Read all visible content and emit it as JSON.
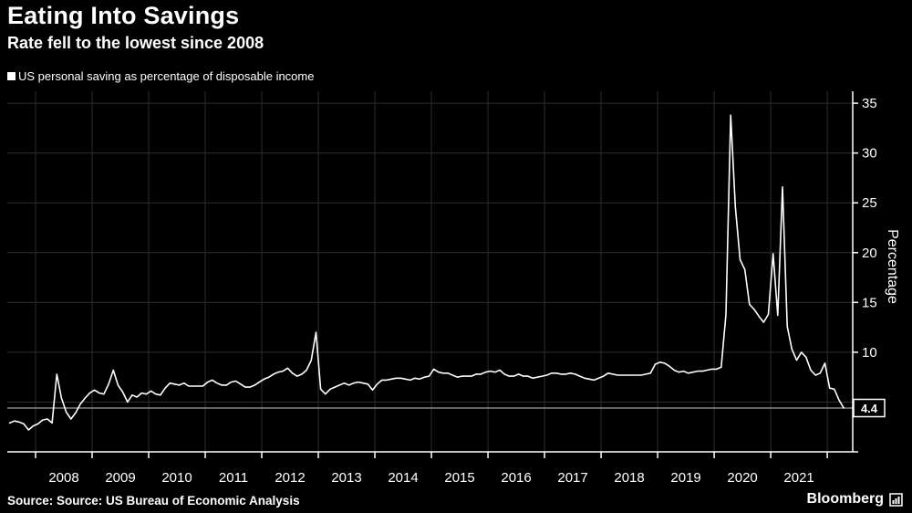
{
  "header": {
    "title": "Eating Into Savings",
    "subtitle": "Rate fell to the lowest since 2008",
    "legend_label": "US personal saving as percentage of disposable income"
  },
  "footer": {
    "source": "Source: Source: US Bureau of Economic Analysis",
    "brand": "Bloomberg"
  },
  "chart_data": {
    "type": "line",
    "title": "Eating Into Savings",
    "subtitle": "Rate fell to the lowest since 2008",
    "ylabel": "Percentage",
    "legend_position": "top-left",
    "grid": true,
    "xlim": [
      2007.5,
      2022.45
    ],
    "ylim": [
      0,
      36.2
    ],
    "yticks": [
      5,
      10,
      15,
      20,
      25,
      30,
      35
    ],
    "ytick_labels": [
      10,
      15,
      20,
      25,
      30,
      35
    ],
    "xgrid_years": [
      2008,
      2009,
      2010,
      2011,
      2012,
      2013,
      2014,
      2015,
      2016,
      2017,
      2018,
      2019,
      2020,
      2021,
      2022
    ],
    "xtick_labels": [
      "2008",
      "2009",
      "2010",
      "2011",
      "2012",
      "2013",
      "2014",
      "2015",
      "2016",
      "2017",
      "2018",
      "2019",
      "2020",
      "2021"
    ],
    "last_value": 4.4,
    "last_value_label": "4.4",
    "colors": {
      "background": "#000000",
      "line": "#ffffff",
      "grid": "#2e2e2e",
      "axis": "#ffffff",
      "marker_line": "#c8c8c8",
      "text": "#ffffff"
    },
    "series": [
      {
        "name": "US personal saving as percentage of disposable income",
        "frequency": "monthly",
        "start_year": 2007,
        "start_month": 7,
        "values": [
          2.9,
          3.1,
          3.0,
          2.8,
          2.2,
          2.6,
          2.8,
          3.2,
          3.3,
          2.9,
          7.8,
          5.4,
          4.0,
          3.3,
          3.9,
          4.8,
          5.4,
          5.9,
          6.2,
          5.9,
          5.8,
          6.8,
          8.2,
          6.7,
          6.0,
          5.0,
          5.7,
          5.5,
          5.9,
          5.8,
          6.1,
          5.8,
          5.7,
          6.4,
          6.9,
          6.8,
          6.7,
          6.9,
          6.6,
          6.6,
          6.6,
          6.6,
          7.0,
          7.2,
          6.9,
          6.7,
          6.7,
          7.0,
          7.1,
          6.8,
          6.5,
          6.5,
          6.7,
          7.0,
          7.3,
          7.5,
          7.8,
          8.0,
          8.1,
          8.4,
          7.9,
          7.6,
          7.8,
          8.2,
          9.2,
          12.0,
          6.3,
          5.8,
          6.3,
          6.5,
          6.7,
          6.9,
          6.7,
          6.9,
          7.0,
          6.9,
          6.8,
          6.2,
          6.8,
          7.2,
          7.2,
          7.3,
          7.4,
          7.4,
          7.3,
          7.2,
          7.4,
          7.3,
          7.5,
          7.6,
          8.3,
          8.0,
          7.9,
          7.9,
          7.7,
          7.5,
          7.6,
          7.6,
          7.6,
          7.8,
          7.8,
          8.0,
          8.1,
          8.0,
          8.2,
          7.8,
          7.6,
          7.6,
          7.8,
          7.6,
          7.6,
          7.4,
          7.5,
          7.6,
          7.7,
          7.9,
          7.9,
          7.8,
          7.8,
          7.9,
          7.8,
          7.6,
          7.4,
          7.3,
          7.2,
          7.4,
          7.6,
          7.9,
          7.8,
          7.7,
          7.7,
          7.7,
          7.7,
          7.7,
          7.7,
          7.8,
          7.9,
          8.8,
          9.0,
          8.9,
          8.6,
          8.2,
          8.0,
          8.1,
          7.9,
          8.0,
          8.1,
          8.1,
          8.2,
          8.3,
          8.3,
          8.5,
          13.8,
          33.8,
          24.6,
          19.3,
          18.3,
          14.8,
          14.3,
          13.6,
          13.0,
          13.8,
          19.9,
          13.7,
          26.6,
          12.6,
          10.3,
          9.2,
          10.0,
          9.5,
          8.2,
          7.7,
          7.9,
          8.9,
          6.4,
          6.3,
          5.2,
          4.4
        ]
      }
    ]
  }
}
